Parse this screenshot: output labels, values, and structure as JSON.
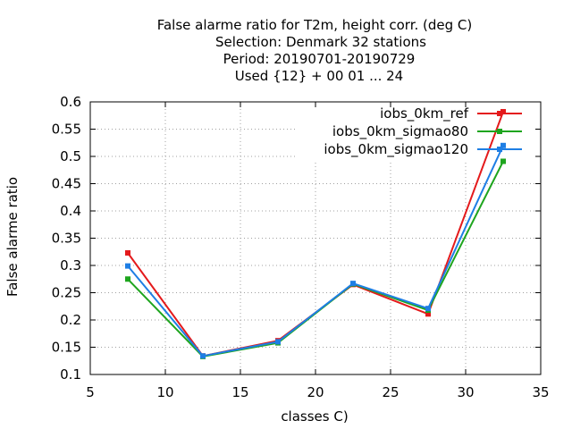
{
  "chart_data": {
    "type": "line",
    "title_lines": [
      "False alarme ratio  for T2m, height corr. (deg C)",
      "Selection: Denmark     32 stations",
      "Period: 20190701-20190729",
      "Used {12} + 00 01 ... 24"
    ],
    "xlabel": "classes C)",
    "ylabel": "False alarme ratio",
    "xlim": [
      5,
      35
    ],
    "ylim": [
      0.1,
      0.6
    ],
    "xticks": [
      5,
      10,
      15,
      20,
      25,
      30,
      35
    ],
    "yticks": [
      0.1,
      0.15,
      0.2,
      0.25,
      0.3,
      0.35,
      0.4,
      0.45,
      0.5,
      0.55,
      0.6
    ],
    "x_tick_labels": [
      "5",
      "10",
      "15",
      "20",
      "25",
      "30",
      "35"
    ],
    "y_tick_labels": [
      "0.1",
      "0.15",
      "0.2",
      "0.25",
      "0.3",
      "0.35",
      "0.4",
      "0.45",
      "0.5",
      "0.55",
      "0.6"
    ],
    "grid": true,
    "legend_position": "top-right",
    "x": [
      7.5,
      12.5,
      17.5,
      22.5,
      27.5,
      32.5
    ],
    "series": [
      {
        "name": "iobs_0km_ref",
        "color": "#e41a1c",
        "values": [
          0.323,
          0.134,
          0.162,
          0.265,
          0.211,
          0.582
        ]
      },
      {
        "name": "iobs_0km_sigmao80",
        "color": "#1ea51e",
        "values": [
          0.275,
          0.133,
          0.158,
          0.266,
          0.218,
          0.491
        ]
      },
      {
        "name": "iobs_0km_sigmao120",
        "color": "#1e7ee4",
        "values": [
          0.299,
          0.134,
          0.16,
          0.267,
          0.221,
          0.52
        ]
      }
    ]
  }
}
